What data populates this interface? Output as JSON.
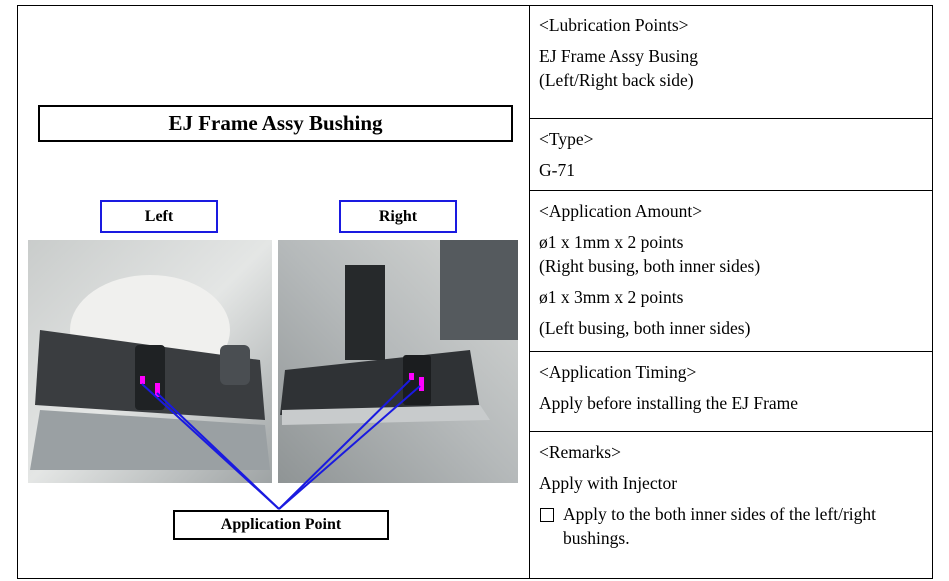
{
  "left": {
    "title": "EJ Frame Assy Bushing",
    "labels": [
      "Left",
      "Right"
    ],
    "callout": "Application Point"
  },
  "right": {
    "sections": [
      {
        "heading": "<Lubrication Points>",
        "lines": [
          "EJ Frame Assy Busing",
          "(Left/Right back side)"
        ]
      },
      {
        "heading": "<Type>",
        "lines": [
          "G-71"
        ]
      },
      {
        "heading": "<Application Amount>",
        "lines": [
          "ø1 x 1mm x 2 points",
          "(Right busing, both inner sides)",
          "ø1 x 3mm x 2 points",
          "(Left busing, both inner sides)"
        ]
      },
      {
        "heading": "<Application Timing>",
        "lines": [
          "Apply before installing the EJ Frame"
        ]
      },
      {
        "heading": "<Remarks>",
        "lines": [
          "Apply with Injector"
        ],
        "check": "Apply to the both inner sides of the left/right bushings."
      }
    ]
  }
}
